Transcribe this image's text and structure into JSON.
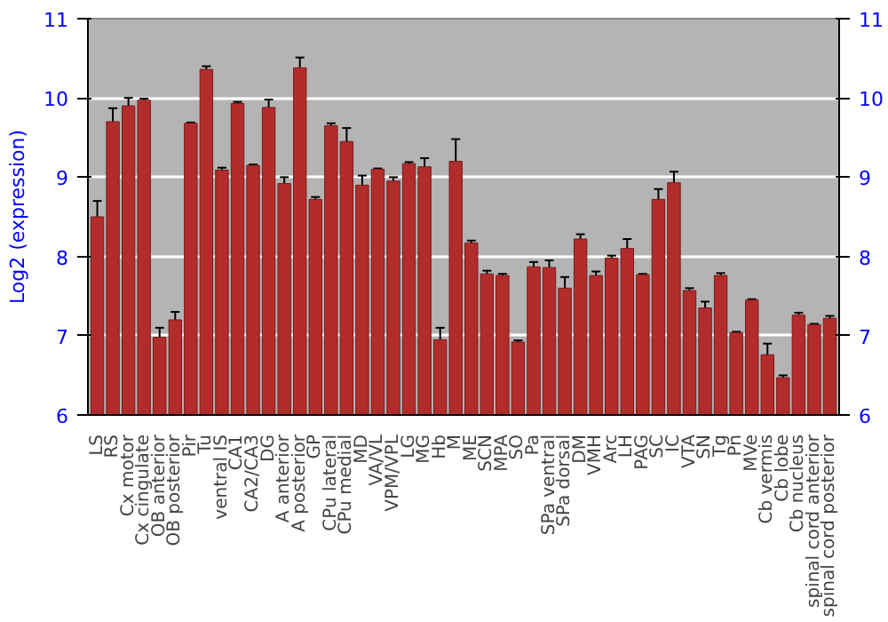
{
  "chart_data": {
    "type": "bar",
    "ylabel": "Log2 (expression)",
    "categories": [
      "LS",
      "RS",
      "Cx motor",
      "Cx cingulate",
      "OB anterior",
      "OB posterior",
      "Pir",
      "Tu",
      "ventral IS",
      "CA1",
      "CA2/CA3",
      "DG",
      "A anterior",
      "A posterior",
      "GP",
      "CPu lateral",
      "CPu medial",
      "MD",
      "VA/VL",
      "VPM/VPL",
      "LG",
      "MG",
      "Hb",
      "M",
      "ME",
      "SCN",
      "MPA",
      "SO",
      "Pa",
      "SPa ventral",
      "SPa dorsal",
      "DM",
      "VMH",
      "Arc",
      "LH",
      "PAG",
      "SC",
      "IC",
      "VTA",
      "SN",
      "Tg",
      "Pn",
      "MVe",
      "Cb vermis",
      "Cb lobe",
      "Cb nucleus",
      "spinal cord anterior",
      "spinal cord posterior"
    ],
    "values": [
      8.5,
      9.7,
      9.9,
      9.97,
      6.98,
      7.2,
      9.68,
      10.36,
      9.09,
      9.93,
      9.15,
      9.88,
      8.92,
      10.38,
      8.72,
      9.65,
      9.45,
      8.9,
      9.1,
      8.95,
      9.17,
      9.13,
      6.95,
      9.2,
      8.17,
      7.78,
      7.76,
      6.92,
      7.87,
      7.86,
      7.6,
      8.22,
      7.76,
      7.98,
      8.1,
      7.77,
      8.72,
      8.93,
      7.57,
      7.35,
      7.76,
      7.04,
      7.45,
      6.76,
      6.47,
      7.26,
      7.14,
      7.22
    ],
    "errors": [
      0.2,
      0.17,
      0.1,
      0.02,
      0.12,
      0.1,
      0.01,
      0.04,
      0.03,
      0.02,
      0.01,
      0.1,
      0.08,
      0.13,
      0.03,
      0.03,
      0.17,
      0.12,
      0.01,
      0.05,
      0.02,
      0.11,
      0.15,
      0.28,
      0.03,
      0.04,
      0.02,
      0.02,
      0.06,
      0.09,
      0.14,
      0.06,
      0.05,
      0.03,
      0.12,
      0.01,
      0.13,
      0.14,
      0.03,
      0.08,
      0.03,
      0.01,
      0.01,
      0.14,
      0.03,
      0.03,
      0.01,
      0.03
    ],
    "color": "#b22c2c",
    "ylim": [
      6,
      11
    ],
    "yticks": [
      6,
      7,
      8,
      9,
      10,
      11
    ],
    "y2lim": [
      6,
      11
    ],
    "y2ticks": [
      6,
      7,
      8,
      9,
      10,
      11
    ],
    "grid": "y"
  }
}
